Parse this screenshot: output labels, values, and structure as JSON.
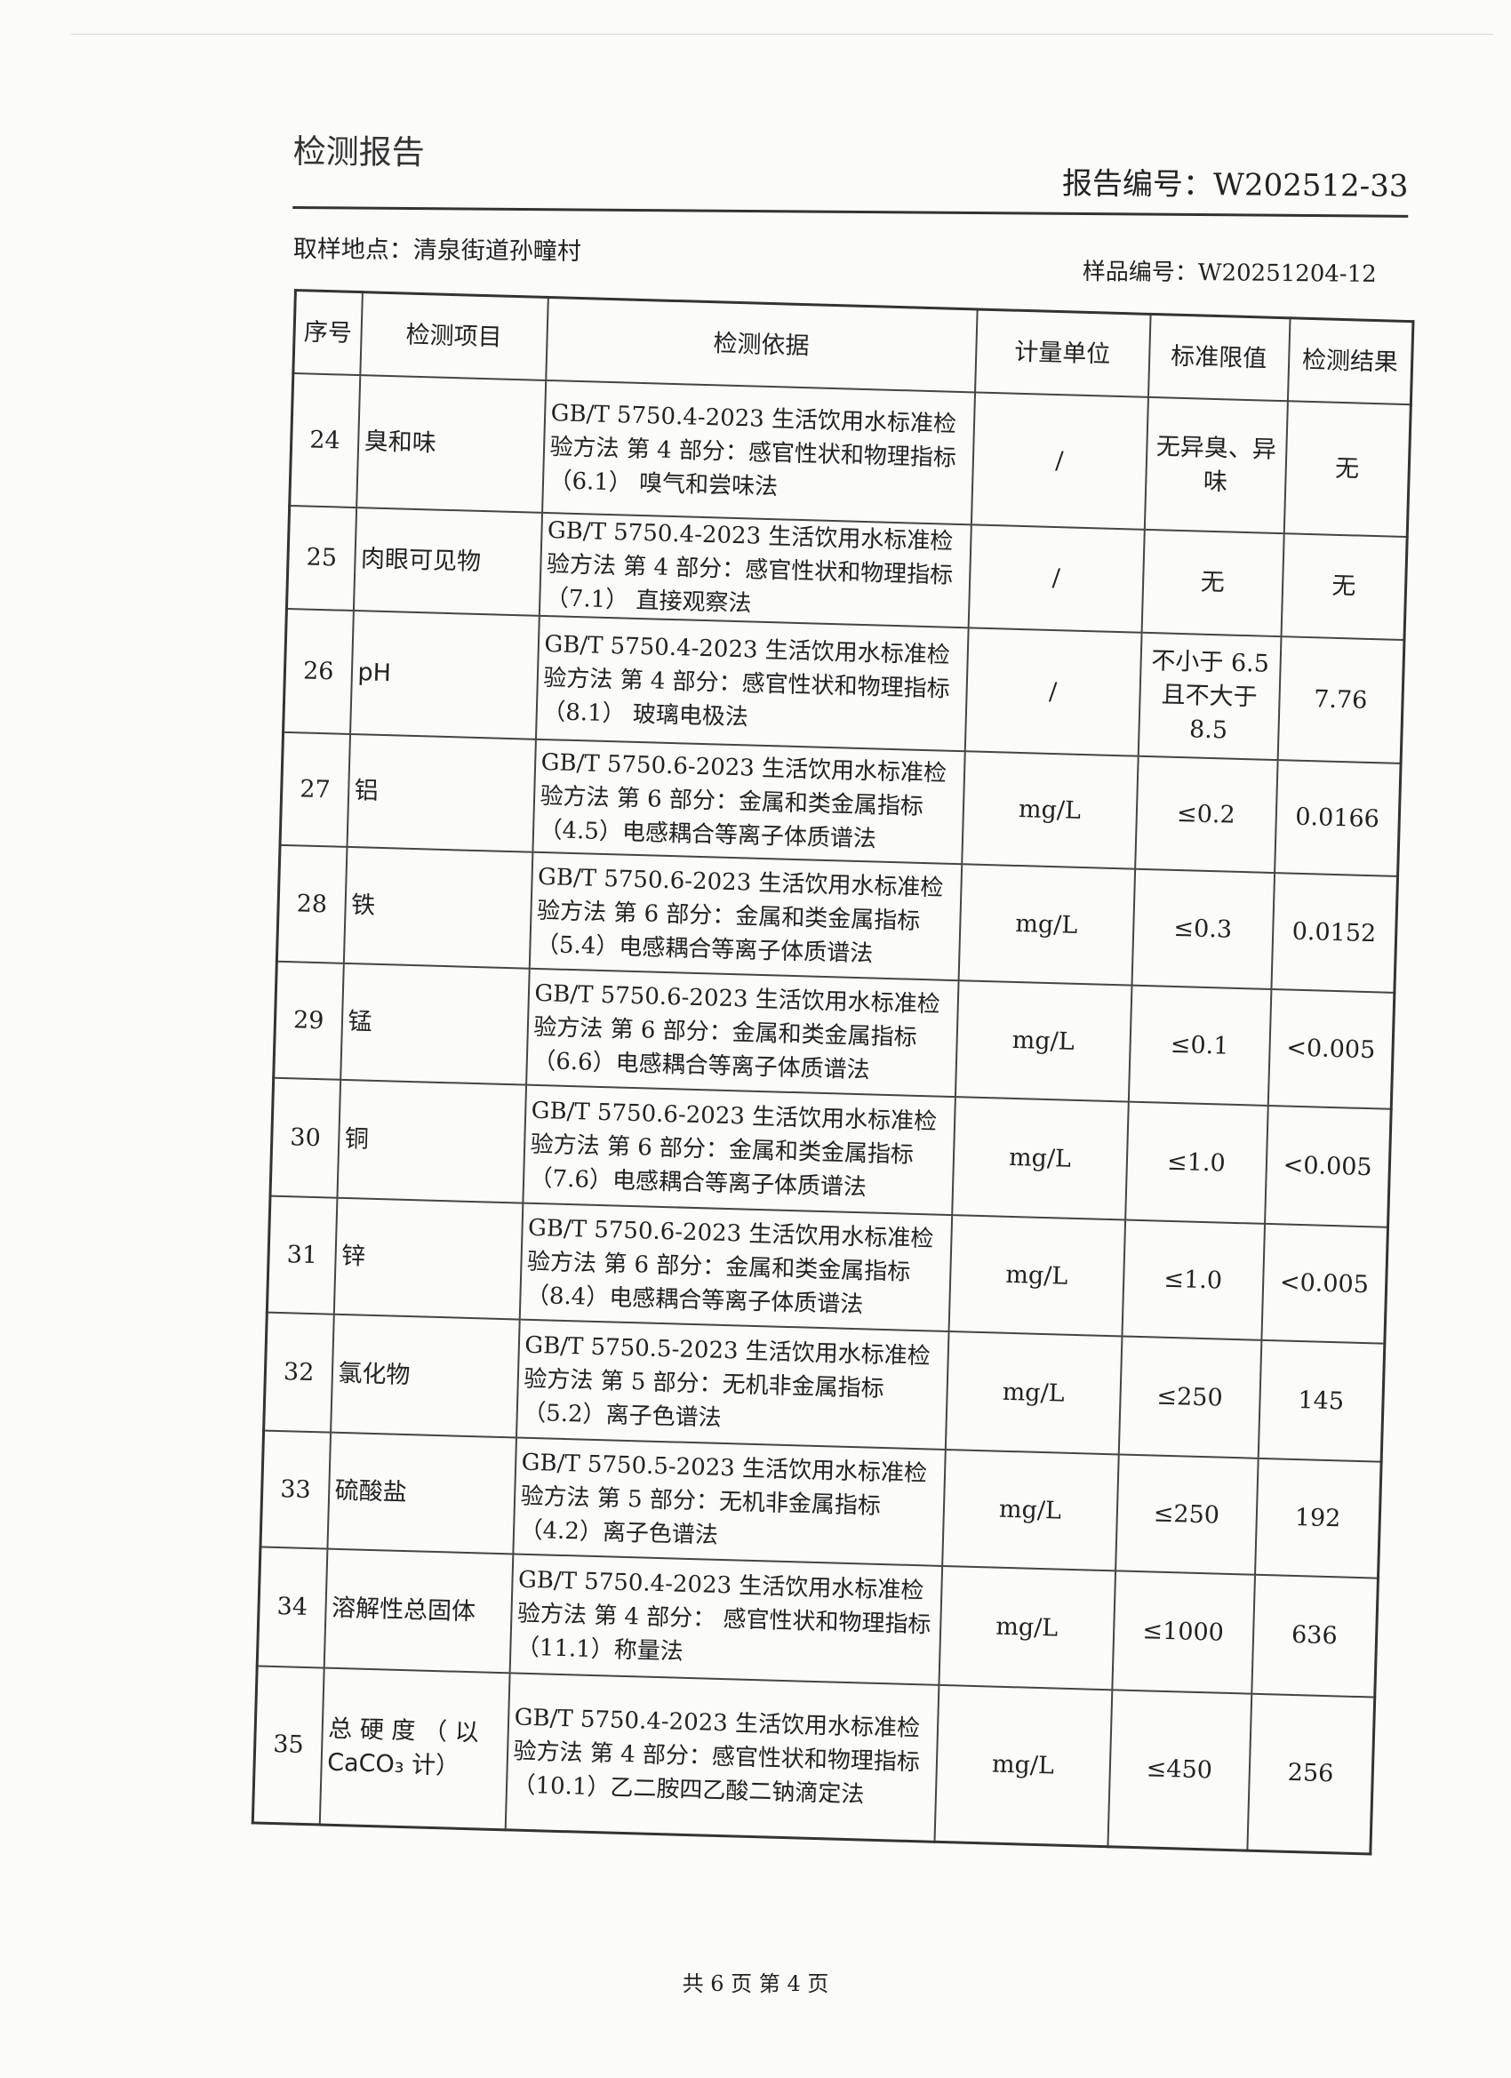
{
  "header": {
    "title": "检测报告",
    "report_number": "报告编号：W202512-33",
    "sampling_location": "取样地点：清泉街道孙疃村",
    "sample_number": "样品编号：W20251204-12"
  },
  "table": {
    "columns": [
      "序号",
      "检测项目",
      "检测依据",
      "计量单位",
      "标准限值",
      "检测结果"
    ],
    "rows": [
      {
        "no": "24",
        "item": "臭和味",
        "basis": "GB/T 5750.4-2023 生活饮用水标准检验方法 第 4 部分：感官性状和物理指标（6.1） 嗅气和尝味法",
        "unit": "/",
        "limit": "无异臭、异味",
        "result": "无"
      },
      {
        "no": "25",
        "item": "肉眼可见物",
        "basis": "GB/T 5750.4-2023 生活饮用水标准检验方法 第 4 部分：感官性状和物理指标（7.1） 直接观察法",
        "unit": "/",
        "limit": "无",
        "result": "无"
      },
      {
        "no": "26",
        "item": "pH",
        "basis": "GB/T 5750.4-2023 生活饮用水标准检验方法 第 4 部分：感官性状和物理指标（8.1） 玻璃电极法",
        "unit": "/",
        "limit": "不小于 6.5 且不大于 8.5",
        "result": "7.76"
      },
      {
        "no": "27",
        "item": "铝",
        "basis": "GB/T 5750.6-2023 生活饮用水标准检验方法 第 6 部分：金属和类金属指标（4.5）电感耦合等离子体质谱法",
        "unit": "mg/L",
        "limit": "≤0.2",
        "result": "0.0166"
      },
      {
        "no": "28",
        "item": "铁",
        "basis": "GB/T 5750.6-2023 生活饮用水标准检验方法 第 6 部分：金属和类金属指标（5.4）电感耦合等离子体质谱法",
        "unit": "mg/L",
        "limit": "≤0.3",
        "result": "0.0152"
      },
      {
        "no": "29",
        "item": "锰",
        "basis": "GB/T 5750.6-2023 生活饮用水标准检验方法 第 6 部分：金属和类金属指标（6.6）电感耦合等离子体质谱法",
        "unit": "mg/L",
        "limit": "≤0.1",
        "result": "<0.005"
      },
      {
        "no": "30",
        "item": "铜",
        "basis": "GB/T 5750.6-2023 生活饮用水标准检验方法 第 6 部分：金属和类金属指标（7.6）电感耦合等离子体质谱法",
        "unit": "mg/L",
        "limit": "≤1.0",
        "result": "<0.005"
      },
      {
        "no": "31",
        "item": "锌",
        "basis": "GB/T 5750.6-2023 生活饮用水标准检验方法 第 6 部分：金属和类金属指标（8.4）电感耦合等离子体质谱法",
        "unit": "mg/L",
        "limit": "≤1.0",
        "result": "<0.005"
      },
      {
        "no": "32",
        "item": "氯化物",
        "basis": "GB/T 5750.5-2023 生活饮用水标准检验方法 第 5 部分：无机非金属指标（5.2）离子色谱法",
        "unit": "mg/L",
        "limit": "≤250",
        "result": "145"
      },
      {
        "no": "33",
        "item": "硫酸盐",
        "basis": "GB/T 5750.5-2023 生活饮用水标准检验方法 第 5 部分：无机非金属指标（4.2）离子色谱法",
        "unit": "mg/L",
        "limit": "≤250",
        "result": "192"
      },
      {
        "no": "34",
        "item": "溶解性总固体",
        "basis": "GB/T 5750.4-2023 生活饮用水标准检验方法 第 4 部分： 感官性状和物理指标（11.1）称量法",
        "unit": "mg/L",
        "limit": "≤1000",
        "result": "636"
      },
      {
        "no": "35",
        "item": "总 硬 度 （ 以 CaCO₃ 计）",
        "basis": "GB/T 5750.4-2023 生活饮用水标准检验方法 第 4 部分：感官性状和物理指标 （10.1）乙二胺四乙酸二钠滴定法",
        "unit": "mg/L",
        "limit": "≤450",
        "result": "256"
      }
    ]
  },
  "footer": {
    "page": "共 6 页  第 4 页"
  }
}
